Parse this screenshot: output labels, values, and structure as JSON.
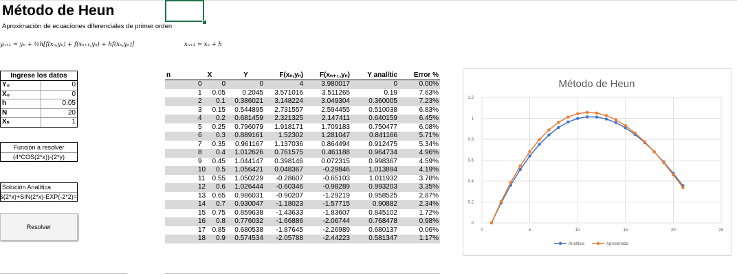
{
  "header": {
    "title": "Método de Heun",
    "subtitle": "Aproximación de ecuaciones diferenciales de primer orden",
    "formula_heun": "yₙ₊₁ = yₙ + ½h[f(xₙ,yₙ) + f(xₙ₊₁,yₙ) + hf(xₙ,yₙ)]",
    "formula_x": "xₙ₊₁ = xₙ + h"
  },
  "inputs": {
    "header": "Ingrese los datos",
    "rows": [
      {
        "label": "Y₀",
        "value": "0"
      },
      {
        "label": "X₀",
        "value": "0"
      },
      {
        "label": "h",
        "value": "0.05"
      },
      {
        "label": "N",
        "value": "20"
      },
      {
        "label": "Xₙ",
        "value": "1"
      }
    ]
  },
  "function_box": {
    "label": "Función a resolver",
    "value": "(4*COS(2*x))-(2*y)"
  },
  "solution_box": {
    "label": "Solución Analítica",
    "value": "=(2*COS(2*x)+SIN(2*x)-EXP(-2"
  },
  "solve_button": {
    "label": "Resolver"
  },
  "table": {
    "headers": [
      "n",
      "X",
      "Y",
      "F(xₙ,yₙ)",
      "F(xₙ₊₁,yₙ)",
      "Y analític",
      "Error %"
    ],
    "rows": [
      [
        "0",
        "0",
        "0",
        "4",
        "3.980017",
        "0",
        "0.00%"
      ],
      [
        "1",
        "0.05",
        "0.2045",
        "3.571016",
        "3.511265",
        "0.19",
        "7.63%"
      ],
      [
        "2",
        "0.1",
        "0.386021",
        "3.148224",
        "3.049304",
        "0.360005",
        "7.23%"
      ],
      [
        "3",
        "0.15",
        "0.544895",
        "2.731557",
        "2.594455",
        "0.510038",
        "6.83%"
      ],
      [
        "4",
        "0.2",
        "0.681459",
        "2.321325",
        "2.147411",
        "0.640159",
        "6.45%"
      ],
      [
        "5",
        "0.25",
        "0.796079",
        "1.918171",
        "1.709183",
        "0.750477",
        "6.08%"
      ],
      [
        "6",
        "0.3",
        "0.889161",
        "1.52302",
        "1.281047",
        "0.841166",
        "5.71%"
      ],
      [
        "7",
        "0.35",
        "0.961167",
        "1.137036",
        "0.864494",
        "0.912475",
        "5.34%"
      ],
      [
        "8",
        "0.4",
        "1.012626",
        "0.761575",
        "0.461188",
        "0.964734",
        "4.96%"
      ],
      [
        "9",
        "0.45",
        "1.044147",
        "0.398146",
        "0.072315",
        "0.998367",
        "4.59%"
      ],
      [
        "10",
        "0.5",
        "1.056421",
        "0.048367",
        "-0.29846",
        "1.013894",
        "4.19%"
      ],
      [
        "11",
        "0.55",
        "1.050229",
        "-0.28607",
        "-0.65103",
        "1.011932",
        "3.78%"
      ],
      [
        "12",
        "0.6",
        "1.026444",
        "-0.60346",
        "-0.98289",
        "0.993203",
        "3.35%"
      ],
      [
        "13",
        "0.65",
        "0.986031",
        "-0.90207",
        "-1.29219",
        "0.958525",
        "2.87%"
      ],
      [
        "14",
        "0.7",
        "0.930047",
        "-1.18023",
        "-1.57715",
        "0.90882",
        "2.34%"
      ],
      [
        "15",
        "0.75",
        "0.859638",
        "-1.43633",
        "-1.83607",
        "0.845102",
        "1.72%"
      ],
      [
        "16",
        "0.8",
        "0.776032",
        "-1.66886",
        "-2.06744",
        "0.768478",
        "0.98%"
      ],
      [
        "17",
        "0.85",
        "0.680538",
        "-1.87645",
        "-2.26989",
        "0.680137",
        "0.06%"
      ],
      [
        "18",
        "0.9",
        "0.574534",
        "-2.05788",
        "-2.44223",
        "0.581347",
        "1.17%"
      ]
    ]
  },
  "chart_data": {
    "type": "line",
    "title": "Método de Heun",
    "xlim": [
      0,
      25
    ],
    "ylim": [
      0,
      1.2
    ],
    "xticks": [
      "0",
      "5",
      "10",
      "15",
      "20",
      "25"
    ],
    "yticks": [
      "0",
      "0.2",
      "0.4",
      "0.6",
      "0.8",
      "1",
      "1.2"
    ],
    "grid": true,
    "legend": "bottom",
    "x": [
      1,
      2,
      3,
      4,
      5,
      6,
      7,
      8,
      9,
      10,
      11,
      12,
      13,
      14,
      15,
      16,
      17,
      18,
      19,
      20,
      21
    ],
    "series": [
      {
        "name": "Analítica",
        "color": "#4472c4",
        "values": [
          0,
          0.19,
          0.360005,
          0.510038,
          0.640159,
          0.750477,
          0.841166,
          0.912475,
          0.964734,
          0.998367,
          1.013894,
          1.011932,
          0.993203,
          0.958525,
          0.90882,
          0.845102,
          0.768478,
          0.680137,
          0.581347,
          0.473,
          0.357
        ]
      },
      {
        "name": "Aproximada",
        "color": "#ed7d31",
        "values": [
          0,
          0.2045,
          0.386021,
          0.544895,
          0.681459,
          0.796079,
          0.889161,
          0.961167,
          1.012626,
          1.044147,
          1.056421,
          1.050229,
          1.026444,
          0.986031,
          0.930047,
          0.859638,
          0.776032,
          0.680538,
          0.574534,
          0.459,
          0.337
        ]
      }
    ]
  }
}
